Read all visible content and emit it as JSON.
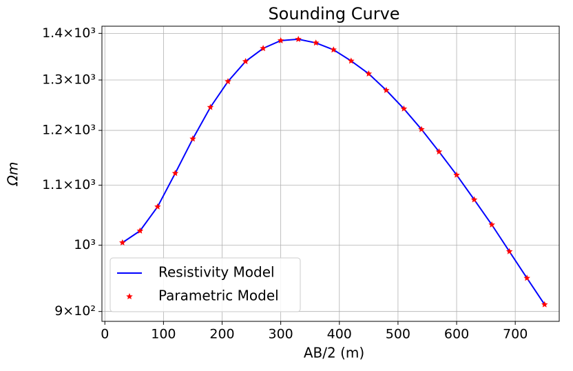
{
  "chart_data": {
    "type": "line",
    "title": "Sounding Curve",
    "xlabel": "AB/2 (m)",
    "ylabel": "Ωm",
    "x": [
      30,
      60,
      90,
      120,
      150,
      180,
      210,
      240,
      270,
      300,
      330,
      360,
      390,
      420,
      450,
      480,
      510,
      540,
      570,
      600,
      630,
      660,
      690,
      720,
      750
    ],
    "series": [
      {
        "name": "Resistivity Model",
        "color": "#0000ff",
        "style": "line",
        "values": [
          1004,
          1023,
          1063,
          1121,
          1184,
          1245,
          1297,
          1339,
          1367,
          1384,
          1387,
          1379,
          1364,
          1340,
          1313,
          1279,
          1242,
          1202,
          1160,
          1118,
          1075,
          1033,
          990,
          949,
          910
        ]
      },
      {
        "name": "Parametric Model",
        "color": "#ff0000",
        "style": "star",
        "values": [
          1004,
          1023,
          1063,
          1121,
          1184,
          1245,
          1297,
          1339,
          1367,
          1384,
          1387,
          1379,
          1364,
          1340,
          1313,
          1279,
          1242,
          1202,
          1160,
          1118,
          1075,
          1033,
          990,
          949,
          910
        ]
      }
    ],
    "xlim": [
      -5,
      775
    ],
    "ylim": [
      886,
      1416
    ],
    "ylog": true,
    "xticks": [
      0,
      100,
      200,
      300,
      400,
      500,
      600,
      700
    ],
    "yticks": [
      {
        "value": 900,
        "label": "9×10²"
      },
      {
        "value": 1000,
        "label": "10³"
      },
      {
        "value": 1100,
        "label": "1.1×10³"
      },
      {
        "value": 1200,
        "label": "1.2×10³"
      },
      {
        "value": 1300,
        "label": "1.3×10³"
      },
      {
        "value": 1400,
        "label": "1.4×10³"
      }
    ],
    "grid": true,
    "legend": "lower left"
  }
}
